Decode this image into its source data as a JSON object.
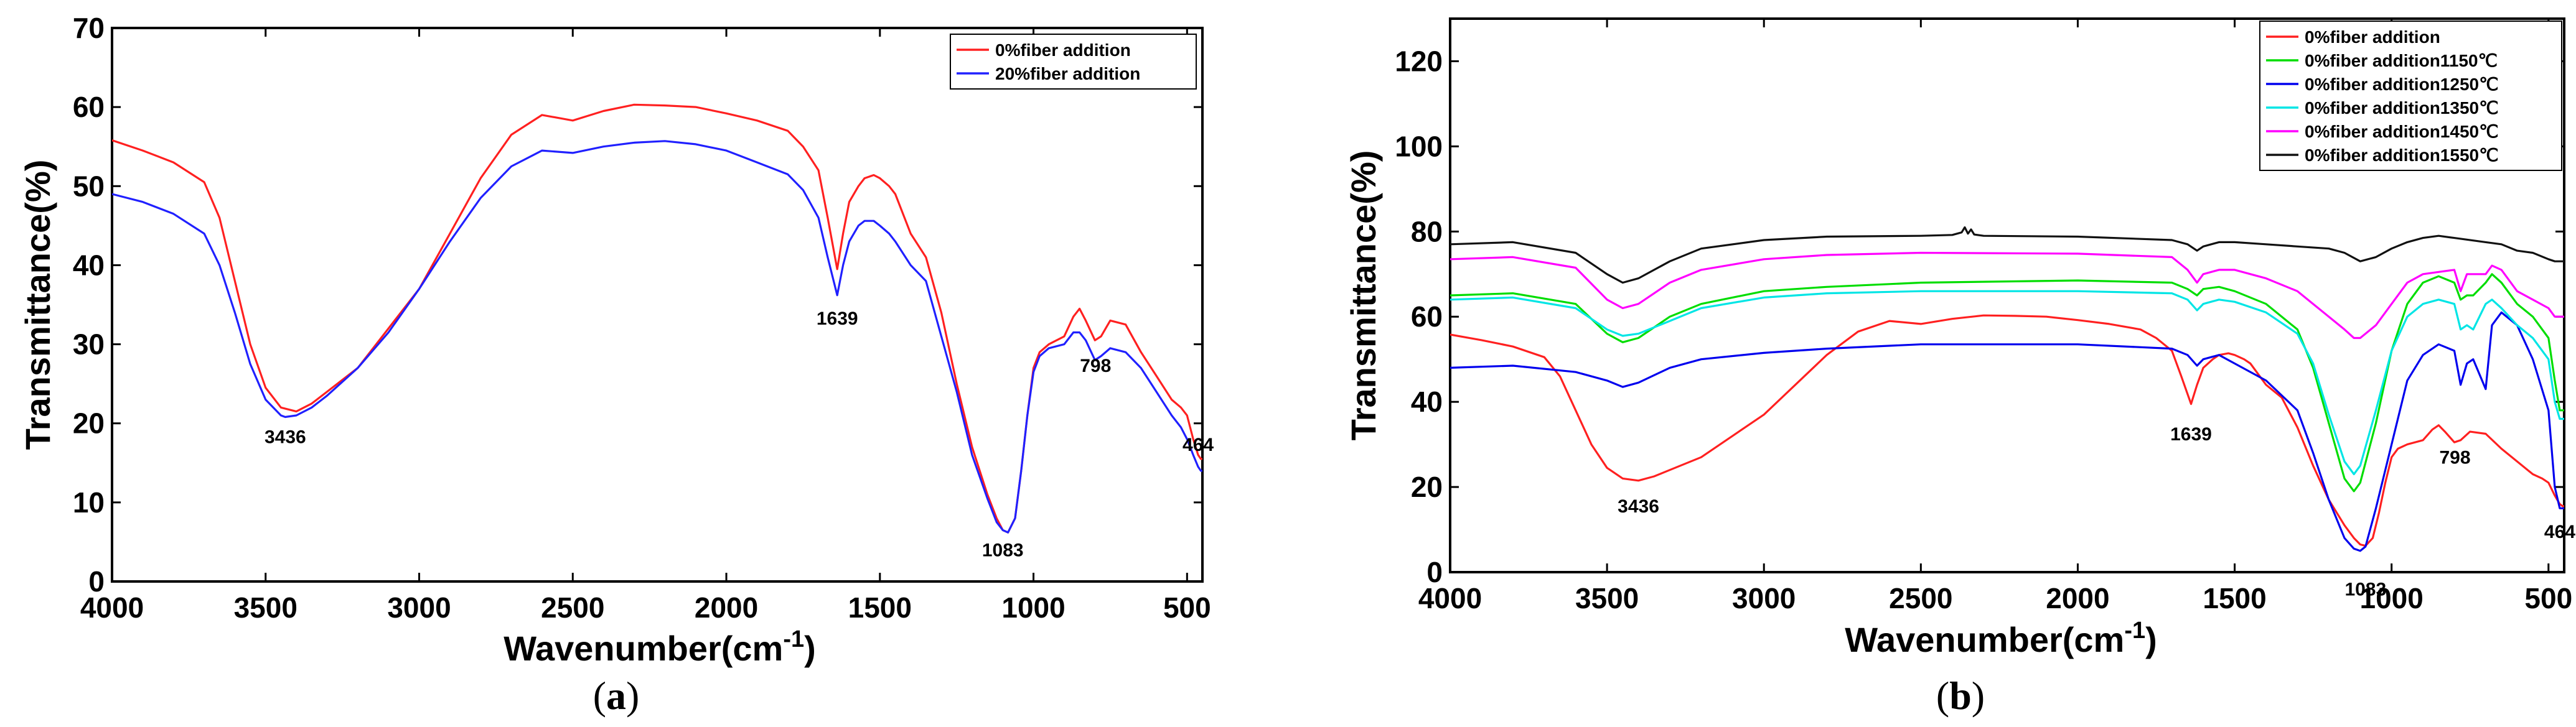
{
  "chart_data": [
    {
      "type": "line",
      "panel": "a",
      "xlabel": "Wavenumber(cm",
      "xlabel_sup": "-1",
      "xlabel_close": ")",
      "ylabel": "Transmittance(%)",
      "xlim": [
        4000,
        450
      ],
      "ylim": [
        0,
        70
      ],
      "xticks": [
        4000,
        3500,
        3000,
        2500,
        2000,
        1500,
        1000,
        500
      ],
      "yticks": [
        0,
        10,
        20,
        30,
        40,
        50,
        60,
        70
      ],
      "legend_position": "top-right",
      "series": [
        {
          "name": "0%fiber addition",
          "color": "#ff2020",
          "x": [
            4000,
            3900,
            3800,
            3700,
            3650,
            3600,
            3550,
            3500,
            3450,
            3400,
            3350,
            3300,
            3200,
            3100,
            3000,
            2900,
            2800,
            2700,
            2600,
            2500,
            2400,
            2300,
            2200,
            2100,
            2000,
            1900,
            1800,
            1750,
            1700,
            1670,
            1639,
            1620,
            1600,
            1570,
            1550,
            1520,
            1500,
            1470,
            1450,
            1400,
            1350,
            1300,
            1250,
            1200,
            1150,
            1120,
            1100,
            1083,
            1060,
            1040,
            1020,
            1000,
            980,
            950,
            900,
            870,
            850,
            830,
            800,
            780,
            750,
            700,
            650,
            600,
            550,
            520,
            500,
            480,
            464,
            455,
            450
          ],
          "y": [
            55.8,
            54.5,
            53,
            50.5,
            46,
            38,
            30,
            24.5,
            22,
            21.5,
            22.5,
            24,
            27,
            32,
            37,
            44,
            51,
            56.5,
            59,
            58.3,
            59.5,
            60.3,
            60.2,
            60,
            59.2,
            58.3,
            57,
            55,
            52,
            46,
            39.5,
            44,
            48,
            50,
            51,
            51.4,
            51,
            50,
            49,
            44,
            41,
            34,
            25,
            17,
            11,
            8,
            6.5,
            6.2,
            8,
            14,
            21,
            27,
            29,
            30,
            31,
            33.5,
            34.5,
            33,
            30.5,
            31,
            33,
            32.5,
            29,
            26,
            23,
            22,
            21,
            18,
            16,
            15.5,
            15.5
          ]
        },
        {
          "name": "20%fiber addition",
          "color": "#2020ff",
          "x": [
            4000,
            3900,
            3800,
            3700,
            3650,
            3600,
            3550,
            3500,
            3450,
            3436,
            3400,
            3350,
            3300,
            3200,
            3100,
            3000,
            2900,
            2800,
            2700,
            2600,
            2500,
            2400,
            2300,
            2200,
            2100,
            2000,
            1900,
            1800,
            1750,
            1700,
            1670,
            1639,
            1620,
            1600,
            1570,
            1550,
            1520,
            1500,
            1470,
            1450,
            1400,
            1350,
            1300,
            1250,
            1200,
            1150,
            1120,
            1100,
            1083,
            1060,
            1040,
            1020,
            1000,
            980,
            950,
            900,
            870,
            850,
            830,
            800,
            780,
            750,
            700,
            650,
            600,
            550,
            520,
            500,
            480,
            464,
            455,
            450
          ],
          "y": [
            49,
            48,
            46.5,
            44,
            40,
            34,
            27.5,
            23,
            21,
            20.8,
            21,
            22,
            23.5,
            27,
            31.5,
            37,
            43,
            48.5,
            52.5,
            54.5,
            54.2,
            55,
            55.5,
            55.7,
            55.3,
            54.5,
            53,
            51.5,
            49.5,
            46,
            41,
            36.2,
            40,
            43,
            45,
            45.6,
            45.6,
            45,
            44,
            43,
            40,
            38,
            31,
            24,
            16,
            10.5,
            7.5,
            6.5,
            6.2,
            8,
            14,
            21,
            26.5,
            28.5,
            29.5,
            30,
            31.5,
            31.5,
            30.5,
            28,
            28.5,
            29.5,
            29,
            27,
            24,
            21,
            19.5,
            18,
            16,
            14.5,
            14,
            14
          ]
        }
      ],
      "annotations": [
        {
          "text": "3436",
          "x": 3436,
          "y": 17.5
        },
        {
          "text": "1639",
          "x": 1639,
          "y": 32.5
        },
        {
          "text": "1083",
          "x": 1100,
          "y": 3.2
        },
        {
          "text": "798",
          "x": 798,
          "y": 26.5
        },
        {
          "text": "464",
          "x": 464,
          "y": 16.5
        }
      ],
      "caption_letter": "a"
    },
    {
      "type": "line",
      "panel": "b",
      "xlabel": "Wavenumber(cm",
      "xlabel_sup": "-1",
      "xlabel_close": ")",
      "ylabel": "Transmittance(%)",
      "xlim": [
        4000,
        450
      ],
      "ylim": [
        0,
        130
      ],
      "xticks": [
        4000,
        3500,
        3000,
        2500,
        2000,
        1500,
        1000,
        500
      ],
      "yticks": [
        0,
        20,
        40,
        60,
        80,
        100,
        120
      ],
      "legend_position": "top-right",
      "series": [
        {
          "name": "0%fiber addition",
          "color": "#ff2020",
          "x": [
            4000,
            3900,
            3800,
            3700,
            3650,
            3600,
            3550,
            3500,
            3450,
            3400,
            3350,
            3300,
            3200,
            3100,
            3000,
            2900,
            2800,
            2700,
            2600,
            2500,
            2400,
            2300,
            2200,
            2100,
            2000,
            1900,
            1800,
            1750,
            1700,
            1670,
            1639,
            1620,
            1600,
            1570,
            1550,
            1520,
            1500,
            1470,
            1450,
            1400,
            1350,
            1300,
            1250,
            1200,
            1150,
            1120,
            1100,
            1083,
            1060,
            1040,
            1020,
            1000,
            980,
            950,
            900,
            870,
            850,
            830,
            800,
            780,
            750,
            700,
            650,
            600,
            550,
            520,
            500,
            480,
            464,
            455,
            450
          ],
          "y": [
            55.8,
            54.5,
            53,
            50.5,
            46,
            38,
            30,
            24.5,
            22,
            21.5,
            22.5,
            24,
            27,
            32,
            37,
            44,
            51,
            56.5,
            59,
            58.3,
            59.5,
            60.3,
            60.2,
            60,
            59.2,
            58.3,
            57,
            55,
            52,
            46,
            39.5,
            44,
            48,
            50,
            51,
            51.4,
            51,
            50,
            49,
            44,
            41,
            34,
            25,
            17,
            11,
            8,
            6.5,
            6.2,
            8,
            14,
            21,
            27,
            29,
            30,
            31,
            33.5,
            34.5,
            33,
            30.5,
            31,
            33,
            32.5,
            29,
            26,
            23,
            22,
            21,
            18,
            16,
            15.5,
            15.5
          ]
        },
        {
          "name": "0%fiber addition1150℃",
          "color": "#00dd00",
          "x": [
            4000,
            3800,
            3600,
            3500,
            3450,
            3400,
            3300,
            3200,
            3000,
            2800,
            2500,
            2000,
            1700,
            1650,
            1620,
            1600,
            1550,
            1500,
            1400,
            1300,
            1250,
            1200,
            1150,
            1120,
            1100,
            1050,
            1000,
            950,
            900,
            850,
            800,
            780,
            760,
            740,
            700,
            680,
            650,
            600,
            550,
            500,
            480,
            464,
            450
          ],
          "y": [
            65,
            65.5,
            63,
            56,
            54,
            55,
            60,
            63,
            66,
            67,
            68,
            68.5,
            68,
            66.5,
            65,
            66.5,
            67,
            66,
            63,
            57,
            48,
            35,
            22,
            19,
            21,
            35,
            52,
            63,
            68,
            69.5,
            68,
            64,
            65,
            65,
            68,
            70,
            68,
            63,
            60,
            55,
            45,
            38,
            38
          ]
        },
        {
          "name": "0%fiber addition1250℃",
          "color": "#0000ee",
          "x": [
            4000,
            3800,
            3600,
            3500,
            3450,
            3400,
            3300,
            3200,
            3000,
            2800,
            2500,
            2000,
            1700,
            1650,
            1620,
            1600,
            1550,
            1500,
            1400,
            1300,
            1250,
            1200,
            1150,
            1120,
            1100,
            1083,
            1050,
            1000,
            950,
            900,
            850,
            800,
            780,
            760,
            740,
            700,
            680,
            650,
            600,
            550,
            500,
            480,
            464,
            450
          ],
          "y": [
            48,
            48.5,
            47,
            45,
            43.5,
            44.5,
            48,
            50,
            51.5,
            52.5,
            53.5,
            53.5,
            52.5,
            51,
            48.5,
            50,
            51,
            49,
            45,
            38,
            28,
            17,
            8,
            5.5,
            5,
            6,
            15,
            30,
            45,
            51,
            53.5,
            52,
            44,
            49,
            50,
            43,
            58,
            61,
            58,
            50,
            38,
            20,
            15,
            15
          ]
        },
        {
          "name": "0%fiber addition1350℃",
          "color": "#00e5e5",
          "x": [
            4000,
            3800,
            3600,
            3500,
            3450,
            3400,
            3300,
            3200,
            3000,
            2800,
            2500,
            2000,
            1700,
            1650,
            1620,
            1600,
            1550,
            1500,
            1400,
            1300,
            1250,
            1200,
            1150,
            1120,
            1100,
            1050,
            1000,
            950,
            900,
            850,
            800,
            780,
            760,
            740,
            700,
            680,
            650,
            600,
            550,
            500,
            480,
            464,
            450
          ],
          "y": [
            64,
            64.5,
            62,
            57,
            55.5,
            56,
            59,
            62,
            64.5,
            65.5,
            66,
            66,
            65.5,
            64,
            61.5,
            63,
            64,
            63.5,
            61,
            56,
            49,
            37,
            26,
            23,
            25,
            38,
            52,
            60,
            63,
            64,
            63,
            57,
            58,
            57,
            63,
            64,
            62,
            58,
            55,
            50,
            40,
            36,
            36
          ]
        },
        {
          "name": "0%fiber addition1450℃",
          "color": "#ff00ff",
          "x": [
            4000,
            3800,
            3600,
            3500,
            3450,
            3400,
            3300,
            3200,
            3000,
            2800,
            2500,
            2000,
            1700,
            1650,
            1620,
            1600,
            1550,
            1500,
            1400,
            1300,
            1250,
            1200,
            1150,
            1120,
            1100,
            1050,
            1000,
            950,
            900,
            850,
            800,
            780,
            760,
            740,
            700,
            680,
            650,
            600,
            550,
            500,
            480,
            464,
            450
          ],
          "y": [
            73.5,
            74,
            71.5,
            64,
            62,
            63,
            68,
            71,
            73.5,
            74.5,
            75,
            74.8,
            74,
            71,
            68,
            70,
            71,
            71,
            69,
            66,
            63,
            60,
            57,
            55,
            55,
            58,
            63,
            68,
            70,
            70.5,
            71,
            66,
            70,
            70,
            70,
            72,
            71,
            66,
            64,
            62,
            60,
            60,
            60
          ]
        },
        {
          "name": "0%fiber addition1550℃",
          "color": "#111111",
          "x": [
            4000,
            3800,
            3600,
            3500,
            3450,
            3400,
            3300,
            3200,
            3000,
            2800,
            2500,
            2400,
            2370,
            2360,
            2350,
            2340,
            2330,
            2300,
            2000,
            1700,
            1650,
            1620,
            1600,
            1550,
            1500,
            1400,
            1300,
            1200,
            1150,
            1100,
            1050,
            1000,
            950,
            900,
            850,
            800,
            700,
            650,
            600,
            550,
            500,
            480,
            464,
            450
          ],
          "y": [
            77,
            77.5,
            75,
            70,
            68,
            69,
            73,
            76,
            78,
            78.8,
            79,
            79.2,
            79.8,
            81,
            79.5,
            80.5,
            79.3,
            79,
            78.8,
            78,
            77,
            75.5,
            76.5,
            77.5,
            77.5,
            77,
            76.5,
            76,
            75,
            73,
            74,
            76,
            77.5,
            78.5,
            79,
            78.5,
            77.5,
            77,
            75.5,
            75,
            73.5,
            73,
            73,
            73
          ]
        }
      ],
      "annotations": [
        {
          "text": "3436",
          "x": 3400,
          "y": 14
        },
        {
          "text": "1639",
          "x": 1639,
          "y": 31
        },
        {
          "text": "1083",
          "x": 1083,
          "y": -5.5
        },
        {
          "text": "798",
          "x": 798,
          "y": 25.5
        },
        {
          "text": "464",
          "x": 464,
          "y": 8
        }
      ],
      "caption_letter": "b"
    }
  ]
}
